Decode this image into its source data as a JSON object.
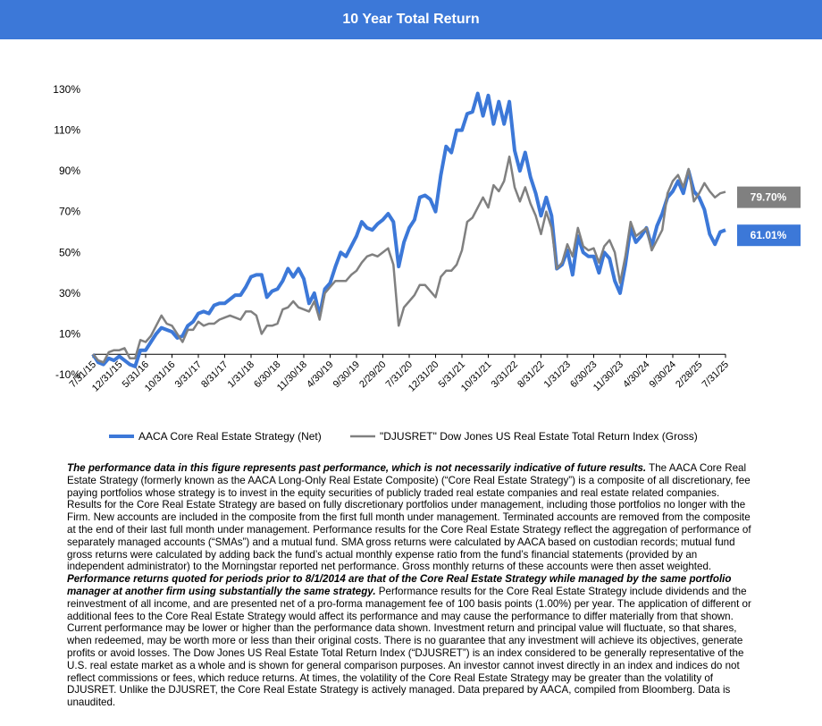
{
  "chart_data": {
    "type": "line",
    "title": "10 Year Total Return",
    "categories": [
      "7/31/15",
      null,
      null,
      null,
      null,
      "12/31/15",
      null,
      null,
      null,
      null,
      "5/31/16",
      null,
      null,
      null,
      null,
      "10/31/16",
      null,
      null,
      null,
      null,
      "3/31/17",
      null,
      null,
      null,
      null,
      "8/31/17",
      null,
      null,
      null,
      null,
      "1/31/18",
      null,
      null,
      null,
      null,
      "6/30/18",
      null,
      null,
      null,
      null,
      "11/30/18",
      null,
      null,
      null,
      null,
      "4/30/19",
      null,
      null,
      null,
      null,
      "9/30/19",
      null,
      null,
      null,
      null,
      "2/29/20",
      null,
      null,
      null,
      null,
      "7/31/20",
      null,
      null,
      null,
      null,
      "12/31/20",
      null,
      null,
      null,
      null,
      "5/31/21",
      null,
      null,
      null,
      null,
      "10/31/21",
      null,
      null,
      null,
      null,
      "3/31/22",
      null,
      null,
      null,
      null,
      "8/31/22",
      null,
      null,
      null,
      null,
      "1/31/23",
      null,
      null,
      null,
      null,
      "6/30/23",
      null,
      null,
      null,
      null,
      "11/30/23",
      null,
      null,
      null,
      null,
      "4/30/24",
      null,
      null,
      null,
      null,
      "9/30/24",
      null,
      null,
      null,
      null,
      "2/28/25",
      null,
      null,
      null,
      null,
      "7/31/25"
    ],
    "series": [
      {
        "name": "AACA Core Real Estate Strategy (Net)",
        "color": "#3c78d8",
        "values": [
          0,
          -4,
          -5,
          -2,
          -3,
          -1,
          -3,
          -5,
          -6,
          2,
          2,
          6,
          10,
          13,
          12,
          11,
          8,
          9,
          14,
          16,
          20,
          21,
          20,
          24,
          25,
          25,
          27,
          29,
          29,
          33,
          38,
          39,
          39,
          28,
          31,
          32,
          36,
          42,
          38,
          42,
          37,
          25,
          30,
          19,
          32,
          35,
          43,
          50,
          48,
          53,
          58,
          65,
          62,
          61,
          64,
          66,
          69,
          65,
          43,
          55,
          62,
          66,
          77,
          78,
          76,
          70,
          88,
          102,
          99,
          110,
          110,
          118,
          119,
          128,
          117,
          127,
          113,
          124,
          113,
          124,
          100,
          90,
          99,
          87,
          79,
          68,
          77,
          68,
          42,
          44,
          51,
          39,
          58,
          50,
          48,
          48,
          40,
          50,
          47,
          36,
          30,
          44,
          62,
          55,
          58,
          62,
          53,
          63,
          69,
          77,
          80,
          85,
          79,
          90,
          80,
          77,
          71,
          59,
          54,
          60,
          61.01
        ],
        "value_labels": [
          null,
          null,
          null,
          null,
          null,
          null,
          null,
          null,
          null,
          null,
          null,
          null,
          null,
          null,
          null,
          null,
          null,
          null,
          null,
          null,
          null,
          null,
          null,
          null,
          null,
          null,
          null,
          null,
          null,
          null,
          null,
          null,
          null,
          null,
          null,
          null,
          null,
          null,
          null,
          null,
          null,
          null,
          null,
          null,
          null,
          null,
          null,
          null,
          null,
          null,
          null,
          null,
          null,
          null,
          null,
          null,
          null,
          null,
          null,
          null,
          null,
          null,
          null,
          null,
          null,
          null,
          null,
          null,
          null,
          null,
          null,
          null,
          null,
          null,
          null,
          null,
          null,
          null,
          null,
          null,
          null,
          null,
          null,
          null,
          null,
          null,
          null,
          null,
          null,
          null,
          null,
          null,
          null,
          null,
          null,
          null,
          null,
          null,
          null,
          null,
          null,
          null,
          null,
          null,
          null,
          null,
          null,
          null,
          null,
          null,
          null,
          null,
          null,
          null,
          null,
          null,
          null,
          null,
          null,
          null,
          "61.01%"
        ]
      },
      {
        "name": "\"DJUSRET\" Dow Jones US Real Estate Total Return Index (Gross)",
        "color": "#808080",
        "values": [
          0,
          -3,
          -4,
          1,
          2,
          2,
          3,
          -2,
          -2,
          7,
          6,
          9,
          14,
          19,
          15,
          14,
          10,
          6,
          12,
          12,
          16,
          14,
          15,
          15,
          17,
          18,
          19,
          18,
          17,
          21,
          21,
          19,
          10,
          14,
          14,
          15,
          22,
          23,
          26,
          23,
          22,
          21,
          26,
          17,
          30,
          33,
          36,
          36,
          36,
          39,
          41,
          45,
          48,
          49,
          48,
          50,
          52,
          44,
          14,
          23,
          26,
          29,
          34,
          34,
          31,
          28,
          38,
          41,
          41,
          44,
          51,
          65,
          67,
          72,
          77,
          72,
          83,
          80,
          85,
          97,
          82,
          75,
          82,
          74,
          68,
          59,
          70,
          62,
          42,
          45,
          54,
          48,
          62,
          53,
          51,
          52,
          45,
          53,
          56,
          50,
          35,
          48,
          65,
          58,
          60,
          62,
          51,
          56,
          61,
          79,
          85,
          88,
          82,
          91,
          75,
          79,
          84,
          80,
          77,
          79,
          79.7
        ],
        "value_labels": [
          null,
          null,
          null,
          null,
          null,
          null,
          null,
          null,
          null,
          null,
          null,
          null,
          null,
          null,
          null,
          null,
          null,
          null,
          null,
          null,
          null,
          null,
          null,
          null,
          null,
          null,
          null,
          null,
          null,
          null,
          null,
          null,
          null,
          null,
          null,
          null,
          null,
          null,
          null,
          null,
          null,
          null,
          null,
          null,
          null,
          null,
          null,
          null,
          null,
          null,
          null,
          null,
          null,
          null,
          null,
          null,
          null,
          null,
          null,
          null,
          null,
          null,
          null,
          null,
          null,
          null,
          null,
          null,
          null,
          null,
          null,
          null,
          null,
          null,
          null,
          null,
          null,
          null,
          null,
          null,
          null,
          null,
          null,
          null,
          null,
          null,
          null,
          null,
          null,
          null,
          null,
          null,
          null,
          null,
          null,
          null,
          null,
          null,
          null,
          null,
          null,
          null,
          null,
          null,
          null,
          null,
          null,
          null,
          null,
          null,
          null,
          null,
          null,
          null,
          null,
          null,
          null,
          null,
          null,
          null,
          "79.70%"
        ]
      }
    ],
    "ylim": [
      -10,
      130
    ],
    "yticks": [
      {
        "value": -10,
        "label": "-10%"
      },
      {
        "value": 10,
        "label": "10%"
      },
      {
        "value": 30,
        "label": "30%"
      },
      {
        "value": 50,
        "label": "50%"
      },
      {
        "value": 70,
        "label": "70%"
      },
      {
        "value": 90,
        "label": "90%"
      },
      {
        "value": 110,
        "label": "110%"
      },
      {
        "value": 130,
        "label": "130%"
      }
    ],
    "grid": false
  },
  "disclaimer": [
    {
      "text": "The performance data in this figure represents past performance, which is not necessarily indicative of future results.",
      "bold": true
    },
    {
      "text": " The AACA  Core Real Estate Strategy (formerly known as the AACA  Long-Only Real Estate Composite) (“Core Real Estate Strategy”) is a composite of all discretionary, fee paying portfolios whose strategy is to invest in the equity securities of publicly traded real estate companies and real estate related companies. Results for the Core Real Estate Strategy  are based on fully discretionary portfolios under management, including those portfolios no longer with the Firm. New accounts are included in the composite from the first full month under management. Terminated accounts are removed from the composite at the end of their last full month under management. Performance results for the Core Real Estate Strategy reflect the aggregation of performance of separately managed accounts (“SMAs”) and a mutual fund. SMA  gross returns were calculated by AACA  based on custodian records; mutual fund gross returns were calculated by adding back the fund’s actual monthly expense ratio from the fund’s financial statements (provided by an independent administrator) to the Morningstar reported net performance. Gross monthly returns of these accounts were then asset weighted. ",
      "bold": false
    },
    {
      "text": "Performance returns quoted for periods prior to 8/1/2014 are that of the Core Real Estate Strategy while managed by the same portfolio manager at another firm using substantially the same strategy.",
      "bold": true
    },
    {
      "text": " Performance results for the Core Real Estate Strategy include dividends and the reinvestment of all income, and are presented net of a pro-forma management fee of 100 basis points (1.00%) per year. The application of different or additional fees to the Core Real Estate Strategy would affect its performance and may cause the performance to differ materially from that  shown. Current performance may be lower or higher than the performance data shown. Investment return and principal value will fluctuate, so that shares, when redeemed, may be worth more or less than their original costs. There is no guarantee that any investment will achieve its objectives, generate profits or avoid losses. The Dow Jones US Real Estate Total Return Index (“DJUSRET”) is an index considered to be generally representative of the U.S.  real estate market as a whole and is shown for general comparison purposes. An investor cannot invest directly in an index and indices do not reflect commissions or fees, which reduce returns. At times, the volatility of the Core Real Estate Strategy may be greater than the volatility of DJUSRET. Unlike the DJUSRET, the Core Real Estate Strategy is actively managed. Data prepared by AACA,  compiled from Bloomberg. Data is unaudited.",
      "bold": false
    }
  ]
}
